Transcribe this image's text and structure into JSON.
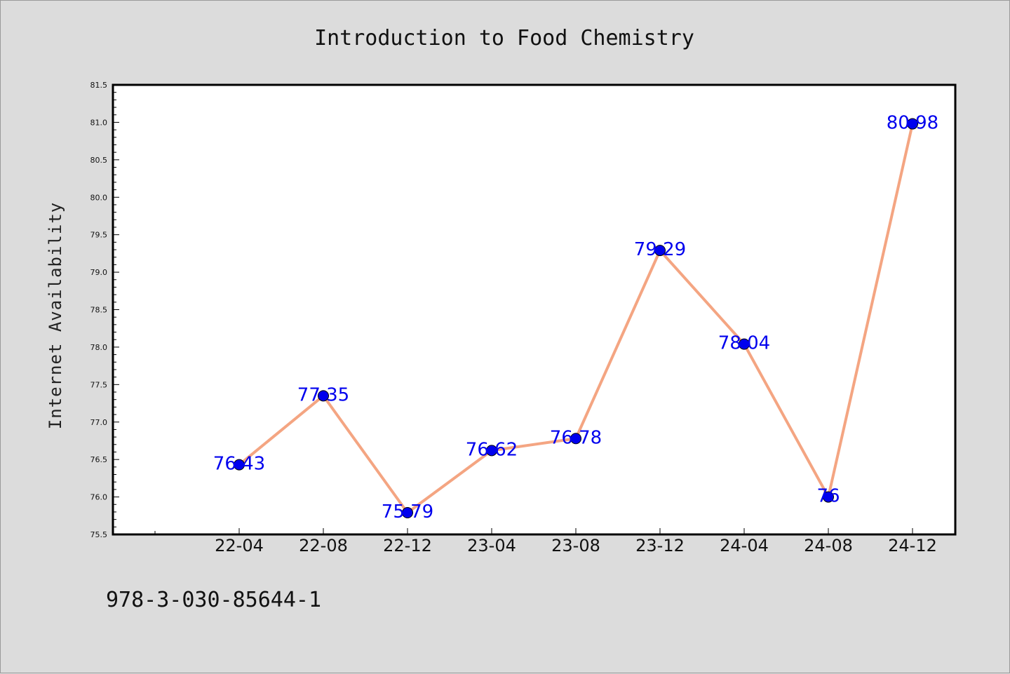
{
  "chart_data": {
    "type": "line",
    "title": "Introduction to Food Chemistry",
    "xlabel": "",
    "ylabel": "Internet Availability",
    "categories": [
      "22-04",
      "22-08",
      "22-12",
      "23-04",
      "23-08",
      "23-12",
      "24-04",
      "24-08",
      "24-12"
    ],
    "values": [
      76.43,
      77.35,
      75.79,
      76.62,
      76.78,
      79.29,
      78.04,
      76.0,
      80.98
    ],
    "data_labels": [
      "76.43",
      "77.35",
      "75.79",
      "76.62",
      "76.78",
      "79.29",
      "78.04",
      "76",
      "80.98"
    ],
    "ylim": [
      75.5,
      81.5
    ],
    "yticks": [
      "75.5",
      "76.0",
      "76.5",
      "77.0",
      "77.5",
      "78.0",
      "78.5",
      "79.0",
      "79.5",
      "80.0",
      "80.5",
      "81.0",
      "81.5"
    ],
    "grid": false,
    "legend": "none",
    "line_color": "#f4a582",
    "marker_color": "#0000ee",
    "label_color": "#0000ee"
  },
  "footer": {
    "isbn": "978-3-030-85644-1"
  }
}
